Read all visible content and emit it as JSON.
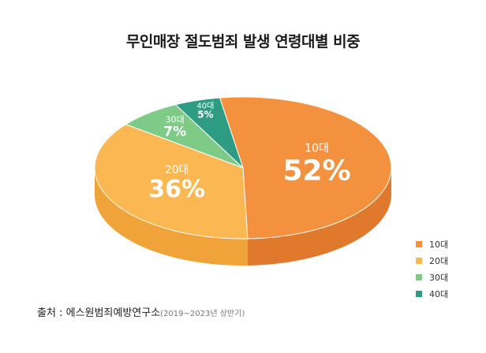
{
  "chart_data": {
    "type": "pie",
    "title": "무인매장 절도범죄 발생 연령대별 비중",
    "categories": [
      "10대",
      "20대",
      "30대",
      "40대"
    ],
    "values": [
      52,
      36,
      7,
      5
    ],
    "value_labels": [
      "52%",
      "36%",
      "7%",
      "5%"
    ],
    "colors": [
      "#F4913F",
      "#FBB751",
      "#7DCB86",
      "#2E9B83"
    ],
    "side_colors": [
      "#E0792C",
      "#EFA338",
      "#5DB36C",
      "#207A66"
    ],
    "legend_position": "bottom-right"
  },
  "source": {
    "label": "출처 : 에스원범죄예방연구소",
    "note": "(2019~2023년 상반기)"
  }
}
